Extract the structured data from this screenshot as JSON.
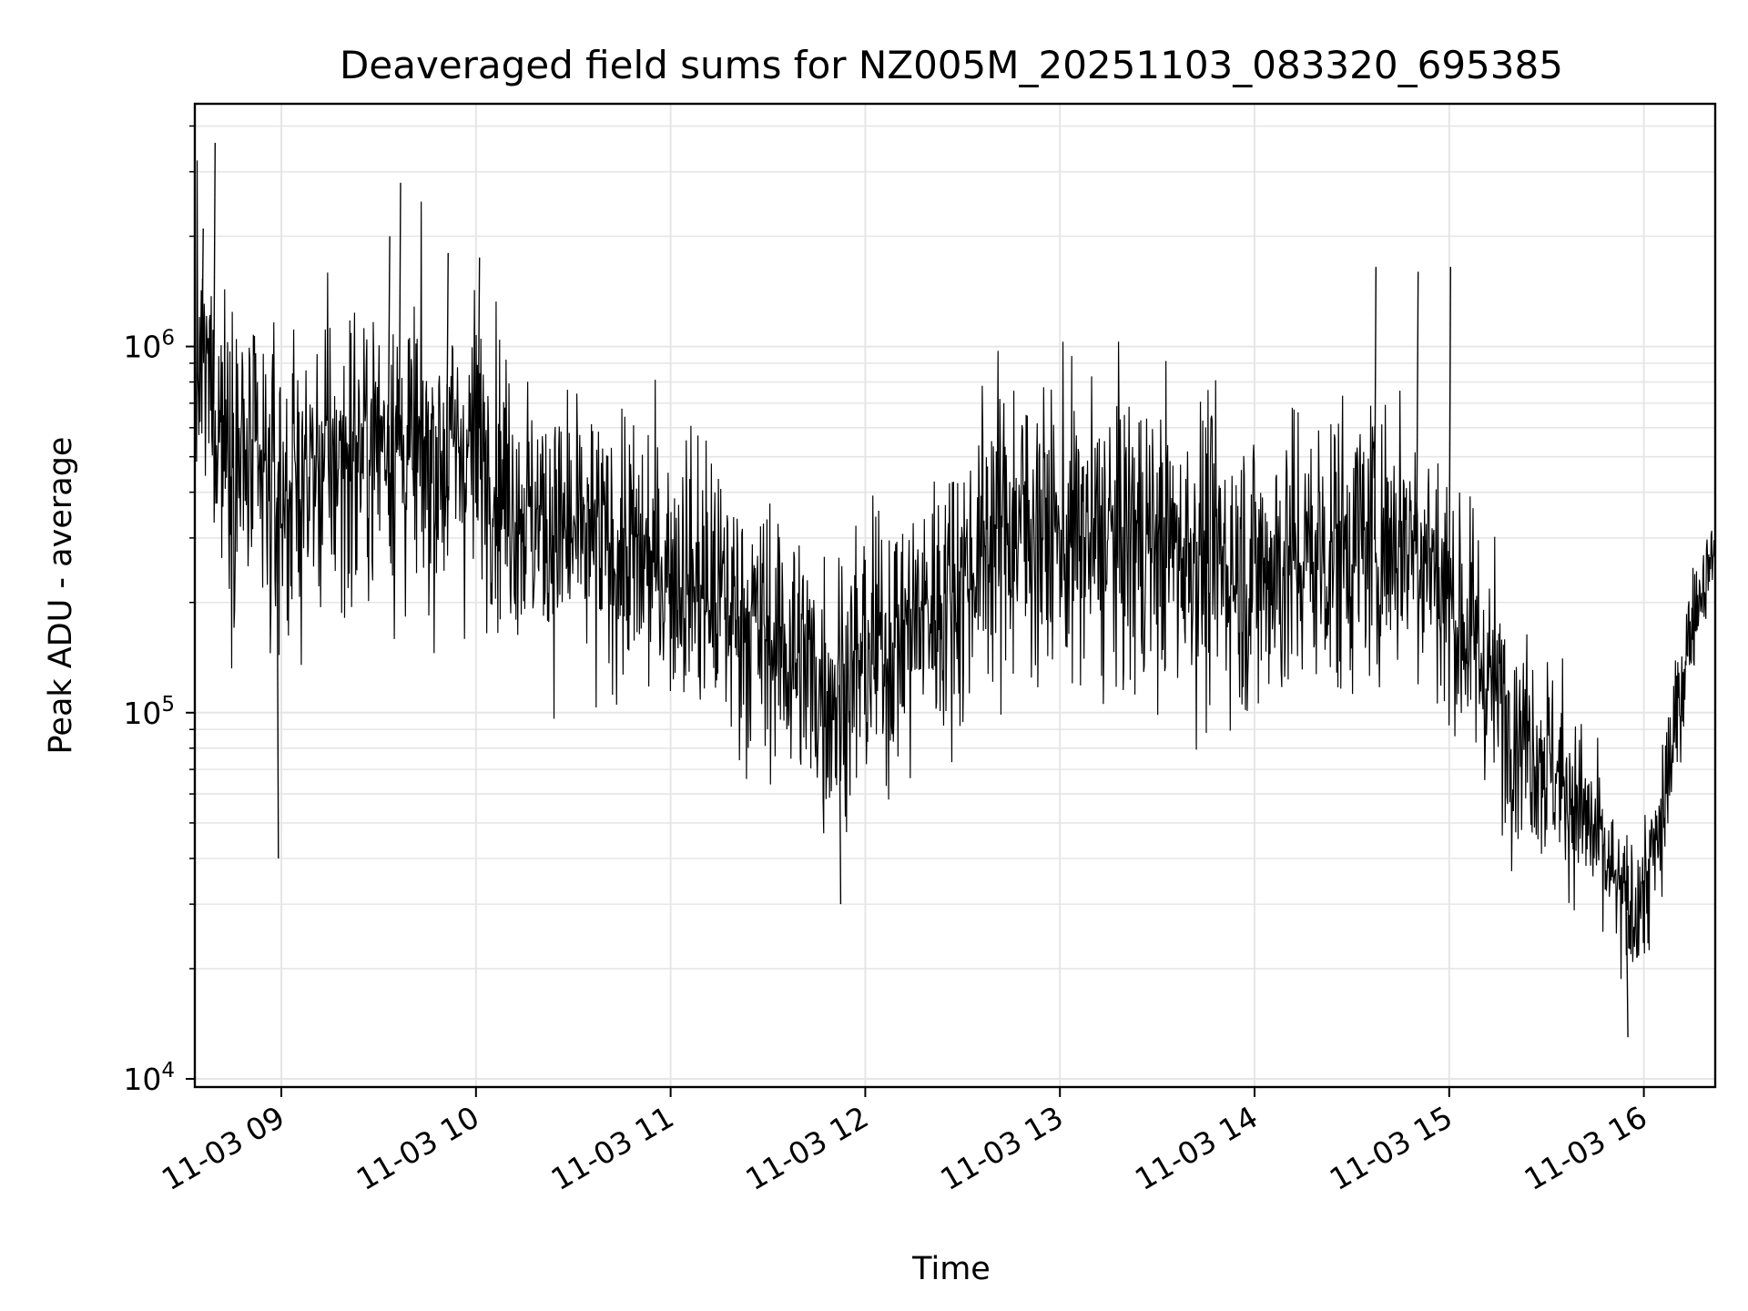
{
  "chart_data": {
    "type": "line",
    "title": "Deaveraged field sums for NZ005M_20251103_083320_695385",
    "xlabel": "Time",
    "ylabel": "Peak ADU - average",
    "yscale": "log",
    "grid": true,
    "line_color": "#000000",
    "grid_color": "#e6e6e6",
    "x_range": [
      "2025-11-03 08:33:20",
      "2025-11-03 16:22:00"
    ],
    "ylim": [
      9500,
      4600000
    ],
    "x_ticks": [
      {
        "time": "2025-11-03 09:00",
        "label": "11-03 09"
      },
      {
        "time": "2025-11-03 10:00",
        "label": "11-03 10"
      },
      {
        "time": "2025-11-03 11:00",
        "label": "11-03 11"
      },
      {
        "time": "2025-11-03 12:00",
        "label": "11-03 12"
      },
      {
        "time": "2025-11-03 13:00",
        "label": "11-03 13"
      },
      {
        "time": "2025-11-03 14:00",
        "label": "11-03 14"
      },
      {
        "time": "2025-11-03 15:00",
        "label": "11-03 15"
      },
      {
        "time": "2025-11-03 16:00",
        "label": "11-03 16"
      }
    ],
    "y_ticks": [
      {
        "value": 10000,
        "base": "10",
        "exp": "4"
      },
      {
        "value": 100000,
        "base": "10",
        "exp": "5"
      },
      {
        "value": 1000000,
        "base": "10",
        "exp": "6"
      }
    ],
    "series": [
      {
        "x": [
          "2025-11-03 08:33:20",
          "2025-11-03 08:35",
          "2025-11-03 08:37",
          "2025-11-03 08:39",
          "2025-11-03 08:41",
          "2025-11-03 08:43",
          "2025-11-03 08:45",
          "2025-11-03 08:47",
          "2025-11-03 08:50",
          "2025-11-03 08:53",
          "2025-11-03 08:56",
          "2025-11-03 08:58",
          "2025-11-03 09:00",
          "2025-11-03 09:05",
          "2025-11-03 09:10",
          "2025-11-03 09:15",
          "2025-11-03 09:20",
          "2025-11-03 09:25",
          "2025-11-03 09:30",
          "2025-11-03 09:32",
          "2025-11-03 09:35",
          "2025-11-03 09:40",
          "2025-11-03 09:45",
          "2025-11-03 09:50",
          "2025-11-03 09:55",
          "2025-11-03 10:00",
          "2025-11-03 10:05",
          "2025-11-03 10:10",
          "2025-11-03 10:15",
          "2025-11-03 10:20",
          "2025-11-03 10:30",
          "2025-11-03 10:40",
          "2025-11-03 10:50",
          "2025-11-03 11:00",
          "2025-11-03 11:05",
          "2025-11-03 11:10",
          "2025-11-03 11:20",
          "2025-11-03 11:30",
          "2025-11-03 11:40",
          "2025-11-03 11:45",
          "2025-11-03 11:50",
          "2025-11-03 11:55",
          "2025-11-03 12:00",
          "2025-11-03 12:10",
          "2025-11-03 12:20",
          "2025-11-03 12:30",
          "2025-11-03 12:40",
          "2025-11-03 12:50",
          "2025-11-03 13:00",
          "2025-11-03 13:10",
          "2025-11-03 13:20",
          "2025-11-03 13:30",
          "2025-11-03 13:40",
          "2025-11-03 13:50",
          "2025-11-03 14:00",
          "2025-11-03 14:10",
          "2025-11-03 14:20",
          "2025-11-03 14:30",
          "2025-11-03 14:40",
          "2025-11-03 14:50",
          "2025-11-03 15:00",
          "2025-11-03 15:05",
          "2025-11-03 15:10",
          "2025-11-03 15:15",
          "2025-11-03 15:20",
          "2025-11-03 15:25",
          "2025-11-03 15:30",
          "2025-11-03 15:35",
          "2025-11-03 15:40",
          "2025-11-03 15:45",
          "2025-11-03 15:50",
          "2025-11-03 15:55",
          "2025-11-03 16:00",
          "2025-11-03 16:05",
          "2025-11-03 16:10",
          "2025-11-03 16:15",
          "2025-11-03 16:20",
          "2025-11-03 16:22"
        ],
        "y": [
          900000,
          800000,
          850000,
          700000,
          650000,
          600000,
          550000,
          500000,
          450000,
          420000,
          400000,
          390000,
          380000,
          420000,
          450000,
          480000,
          500000,
          520000,
          560000,
          600000,
          550000,
          500000,
          480000,
          500000,
          520000,
          540000,
          480000,
          400000,
          360000,
          330000,
          300000,
          280000,
          260000,
          250000,
          240000,
          220000,
          190000,
          160000,
          140000,
          120000,
          115000,
          125000,
          140000,
          160000,
          190000,
          230000,
          320000,
          330000,
          300000,
          290000,
          300000,
          290000,
          280000,
          260000,
          240000,
          260000,
          270000,
          290000,
          300000,
          310000,
          200000,
          170000,
          140000,
          110000,
          95000,
          85000,
          75000,
          65000,
          55000,
          45000,
          35000,
          28000,
          32000,
          45000,
          90000,
          180000,
          250000,
          280000
        ],
        "spread": [
          0.55,
          0.55,
          0.55,
          0.55,
          0.55,
          0.55,
          0.55,
          0.55,
          0.55,
          0.55,
          0.55,
          0.55,
          0.55,
          0.55,
          0.55,
          0.55,
          0.55,
          0.55,
          0.55,
          0.55,
          0.55,
          0.55,
          0.55,
          0.55,
          0.55,
          0.55,
          0.5,
          0.5,
          0.5,
          0.5,
          0.5,
          0.5,
          0.5,
          0.5,
          0.5,
          0.5,
          0.5,
          0.5,
          0.5,
          0.5,
          0.5,
          0.5,
          0.5,
          0.5,
          0.5,
          0.5,
          0.55,
          0.55,
          0.55,
          0.55,
          0.55,
          0.55,
          0.55,
          0.55,
          0.55,
          0.55,
          0.55,
          0.55,
          0.55,
          0.55,
          0.5,
          0.48,
          0.46,
          0.44,
          0.42,
          0.4,
          0.38,
          0.36,
          0.34,
          0.32,
          0.3,
          0.28,
          0.3,
          0.3,
          0.26,
          0.18,
          0.14,
          0.12
        ]
      }
    ],
    "spikes": [
      {
        "x": "2025-11-03 08:35:30",
        "y": 2100000
      },
      {
        "x": "2025-11-03 08:39:10",
        "y": 3600000
      },
      {
        "x": "2025-11-03 09:33:00",
        "y": 2000000
      },
      {
        "x": "2025-11-03 09:36:20",
        "y": 2800000
      },
      {
        "x": "2025-11-03 09:51:00",
        "y": 1800000
      },
      {
        "x": "2025-11-03 10:00:40",
        "y": 1750000
      },
      {
        "x": "2025-11-03 14:37:00",
        "y": 1650000
      },
      {
        "x": "2025-11-03 14:50:00",
        "y": 1600000
      },
      {
        "x": "2025-11-03 15:00:00",
        "y": 1650000
      },
      {
        "x": "2025-11-03 08:58:40",
        "y": 40000
      },
      {
        "x": "2025-11-03 11:52:00",
        "y": 30000
      },
      {
        "x": "2025-11-03 15:54:40",
        "y": 13000
      }
    ]
  }
}
